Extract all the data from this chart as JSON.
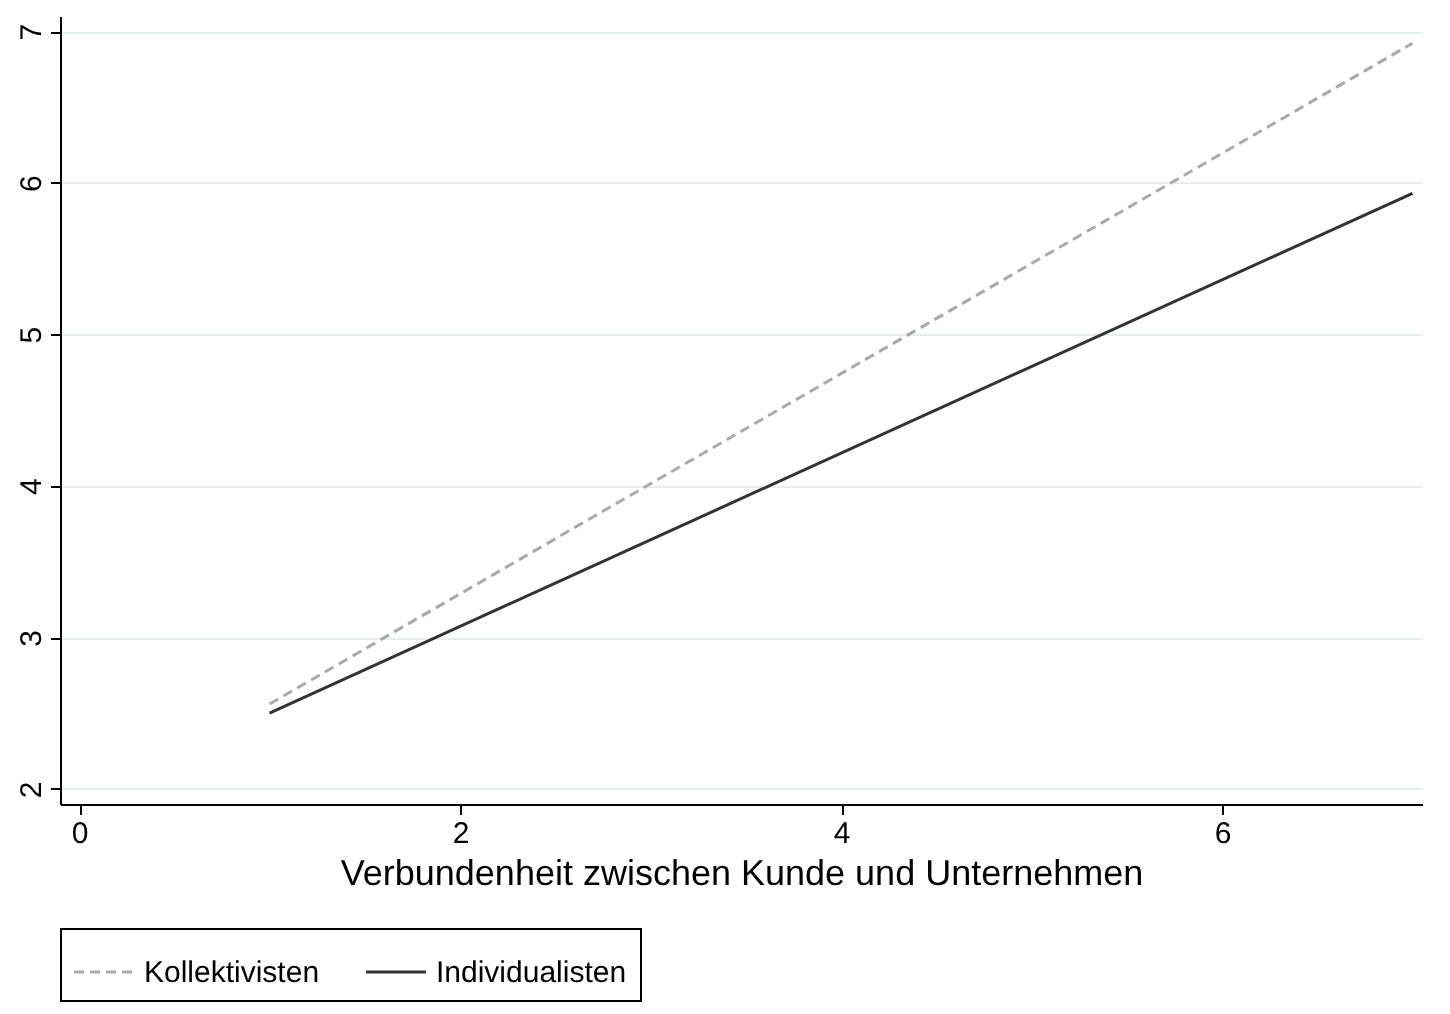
{
  "chart_data": {
    "type": "line",
    "xlabel": "Verbundenheit zwischen Kunde und Unternehmen",
    "x": [
      1,
      7
    ],
    "series": [
      {
        "name": "Kollektivisten",
        "color": "#aaaaaa",
        "line_style": "dashed",
        "values": [
          2.56,
          6.92
        ]
      },
      {
        "name": "Individualisten",
        "color": "#333333",
        "line_style": "solid",
        "values": [
          2.5,
          5.93
        ]
      }
    ],
    "xlim": [
      -0.1,
      7.05
    ],
    "xticks": [
      0,
      2,
      4,
      6
    ],
    "ylim": [
      1.9,
      7.1
    ],
    "yticks": [
      2,
      3,
      4,
      5,
      6,
      7
    ],
    "grid": "y",
    "legend": "bottom",
    "marker": "none"
  }
}
